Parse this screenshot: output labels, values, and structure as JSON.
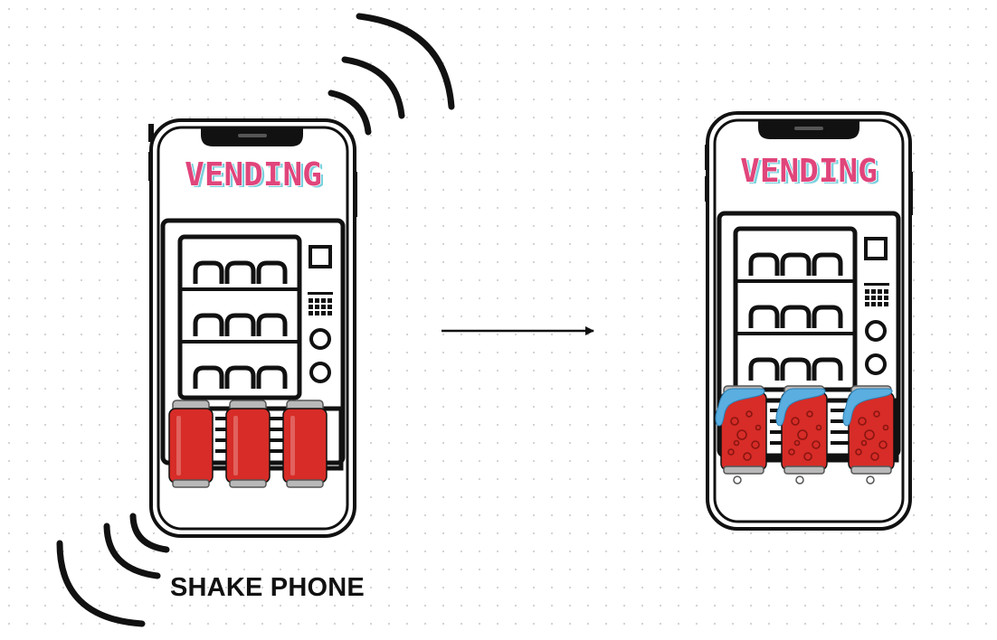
{
  "phones": [
    {
      "title": "VENDING",
      "state": "shaking"
    },
    {
      "title": "VENDING",
      "state": "fizzing"
    }
  ],
  "caption": "SHAKE PHONE",
  "colors": {
    "title_fill": "#e0457b",
    "title_shadow": "#7ad0dd",
    "can_red": "#d72c27",
    "fizz_blue": "#5aaee0",
    "outline": "#111111"
  }
}
